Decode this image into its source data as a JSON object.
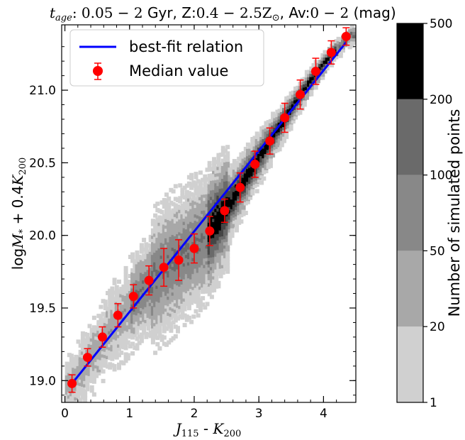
{
  "figure": {
    "title": {
      "tage_symbol": "t",
      "tage_sub": "age",
      "tage_range": ": 0.05 − 2",
      "gyr": " Gyr, Z:",
      "z_range": "0.4 − 2.5Z",
      "sun": "⊙",
      "av": ", Av:",
      "av_range": "0 − 2",
      "unit": " (mag)"
    },
    "xlabel": {
      "j": "J",
      "j_sub": "115",
      "sep": " - ",
      "k": "K",
      "k_sub": "200"
    },
    "ylabel": {
      "log": "log",
      "m": "M",
      "m_sub": "*",
      "plus": " + 0.4",
      "k": "K",
      "k_sub": "200"
    },
    "legend": {
      "items": [
        {
          "label": "best-fit relation",
          "marker": "line",
          "color": "#0000ff"
        },
        {
          "label": "Median value",
          "marker": "errorbar-dot",
          "color": "#ff0000"
        }
      ],
      "placement": "upper-left"
    },
    "colorbar": {
      "label": "Number of simulated points",
      "ticks": [
        "1",
        "20",
        "50",
        "100",
        "200",
        "500"
      ],
      "bin_colors": [
        "#d0d0d0",
        "#a8a8a8",
        "#888888",
        "#6a6a6a",
        "#454545",
        "#000000"
      ]
    }
  },
  "chart_data": {
    "type": "scatter",
    "xlabel": "J115 - K200",
    "ylabel": "logM* + 0.4K200",
    "xlim": [
      -0.05,
      4.5
    ],
    "ylim": [
      18.85,
      21.45
    ],
    "xticks": [
      "0",
      "1",
      "2",
      "3",
      "4"
    ],
    "yticks": [
      "19.0",
      "19.5",
      "20.0",
      "20.5",
      "21.0"
    ],
    "series": [
      {
        "name": "Median value",
        "type": "errorbar",
        "color": "#ff0000",
        "points": [
          {
            "x": 0.11,
            "y": 18.98,
            "err": 0.06
          },
          {
            "x": 0.35,
            "y": 19.16,
            "err": 0.06
          },
          {
            "x": 0.58,
            "y": 19.3,
            "err": 0.07
          },
          {
            "x": 0.82,
            "y": 19.45,
            "err": 0.08
          },
          {
            "x": 1.06,
            "y": 19.58,
            "err": 0.08
          },
          {
            "x": 1.3,
            "y": 19.69,
            "err": 0.1
          },
          {
            "x": 1.53,
            "y": 19.78,
            "err": 0.13
          },
          {
            "x": 1.76,
            "y": 19.83,
            "err": 0.14
          },
          {
            "x": 2.0,
            "y": 19.91,
            "err": 0.1
          },
          {
            "x": 2.24,
            "y": 20.03,
            "err": 0.1
          },
          {
            "x": 2.47,
            "y": 20.17,
            "err": 0.08
          },
          {
            "x": 2.71,
            "y": 20.33,
            "err": 0.1
          },
          {
            "x": 2.94,
            "y": 20.49,
            "err": 0.09
          },
          {
            "x": 3.17,
            "y": 20.65,
            "err": 0.09
          },
          {
            "x": 3.4,
            "y": 20.81,
            "err": 0.1
          },
          {
            "x": 3.64,
            "y": 20.97,
            "err": 0.1
          },
          {
            "x": 3.88,
            "y": 21.13,
            "err": 0.09
          },
          {
            "x": 4.12,
            "y": 21.26,
            "err": 0.08
          },
          {
            "x": 4.35,
            "y": 21.37,
            "err": 0.06
          }
        ]
      },
      {
        "name": "best-fit relation",
        "type": "line",
        "color": "#0000ff",
        "points": [
          {
            "x": 0.11,
            "y": 18.98
          },
          {
            "x": 4.35,
            "y": 21.33
          }
        ]
      }
    ],
    "density": {
      "description_free": true,
      "ridge": [
        [
          0.1,
          18.98
        ],
        [
          0.6,
          19.3
        ],
        [
          1.1,
          19.58
        ],
        [
          1.6,
          19.8
        ],
        [
          2.1,
          19.97
        ],
        [
          2.5,
          20.2
        ],
        [
          2.9,
          20.48
        ],
        [
          3.3,
          20.75
        ],
        [
          3.7,
          21.02
        ],
        [
          4.1,
          21.25
        ],
        [
          4.4,
          21.38
        ]
      ]
    }
  }
}
